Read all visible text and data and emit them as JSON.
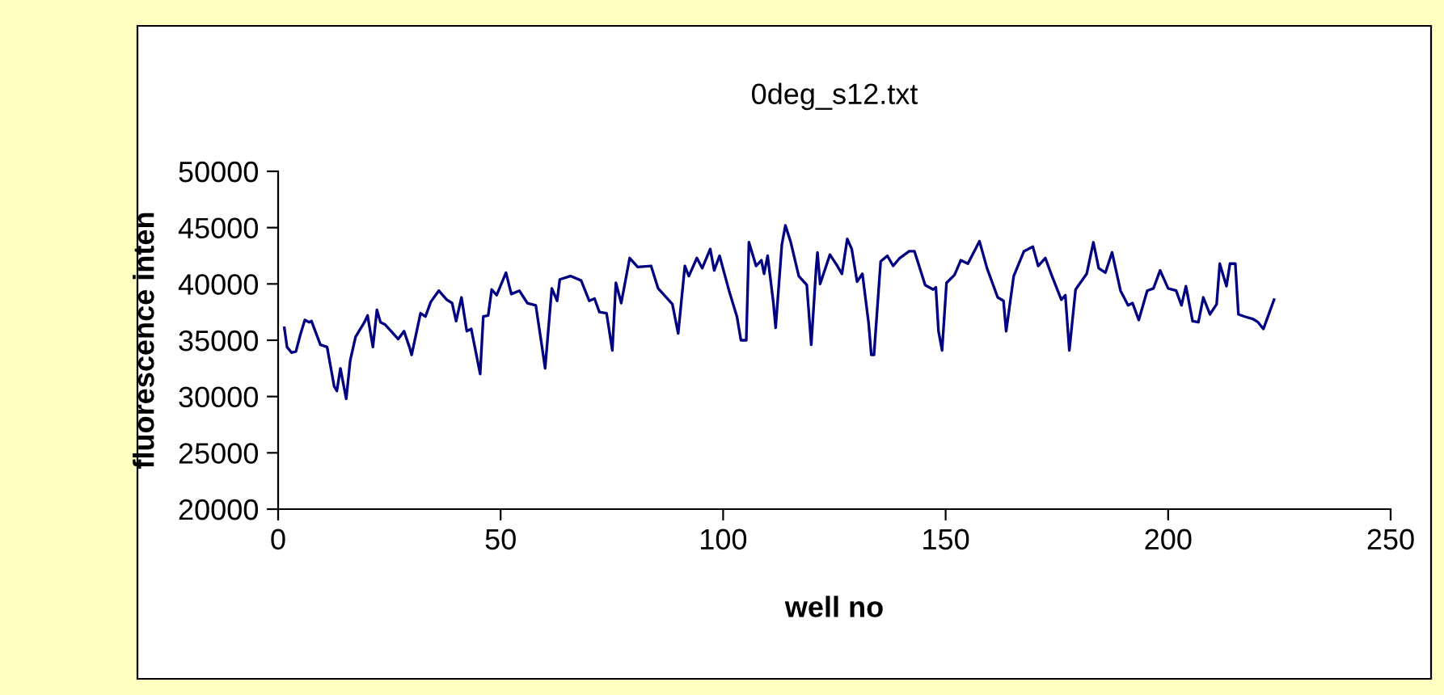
{
  "chart_data": {
    "type": "line",
    "title": "0deg_s12.txt",
    "xlabel": "well no",
    "ylabel": "fluorescence inten",
    "xlim": [
      0,
      250
    ],
    "xticks": [
      0,
      50,
      100,
      150,
      200,
      250
    ],
    "ylim": [
      20000,
      50000
    ],
    "yticks": [
      20000,
      25000,
      30000,
      35000,
      40000,
      45000,
      50000
    ],
    "grid": false,
    "legend": false,
    "marker": "none",
    "line_style": "solid",
    "series": [
      {
        "color": "#000080",
        "x": [
          1.4,
          2,
          3,
          4,
          5,
          6,
          7,
          7.5,
          9.5,
          11,
          12.6,
          13.2,
          14,
          15.3,
          16.2,
          17.4,
          19.4,
          20.1,
          21.3,
          22.2,
          23,
          24,
          27,
          28.3,
          29.5,
          30,
          32,
          33.1,
          34.3,
          36.1,
          37.9,
          39.1,
          40,
          41.2,
          42.4,
          43.4,
          45.4,
          46.1,
          47.2,
          48,
          49.1,
          51.2,
          52.4,
          54.2,
          56,
          57.9,
          59.3,
          60,
          61.5,
          62.7,
          63.3,
          65.7,
          68.1,
          69.9,
          71.1,
          72.2,
          73.8,
          75.1,
          75.9,
          77.1,
          79,
          80.8,
          83.8,
          85.4,
          88.6,
          89.9,
          91.4,
          92.3,
          94.1,
          95.3,
          97.1,
          98,
          99.2,
          101.4,
          103.1,
          104,
          105.2,
          105.8,
          107.4,
          108.6,
          109.2,
          110,
          111.3,
          111.8,
          113.2,
          114,
          115.2,
          117,
          118.8,
          119.8,
          120.9,
          121.2,
          121.8,
          124,
          125.5,
          126.7,
          127.9,
          128.9,
          130.1,
          131.3,
          132.7,
          133.3,
          133.9,
          135.4,
          136.9,
          138.2,
          139.7,
          141.8,
          143,
          145.4,
          147.2,
          147.8,
          148.4,
          149.2,
          150.2,
          152,
          153.4,
          155,
          157.6,
          159.3,
          161.7,
          163,
          163.6,
          165.3,
          167.6,
          169.6,
          170.8,
          172.4,
          173.9,
          176,
          176.9,
          177.8,
          179.2,
          181.7,
          183.2,
          184.4,
          185.9,
          187.4,
          189.3,
          191,
          192,
          193.4,
          195.3,
          196.7,
          198.2,
          200,
          201.8,
          203,
          204,
          205.5,
          206.8,
          207.9,
          209.4,
          210.9,
          211.6,
          213.1,
          213.9,
          215.1,
          215.8,
          217.2,
          219,
          220.2,
          221.4,
          223.8
        ],
        "values": [
          36100,
          34400,
          33900,
          34000,
          35500,
          36800,
          36600,
          36700,
          34600,
          34400,
          30900,
          30500,
          32500,
          29800,
          33200,
          35300,
          36600,
          37200,
          34400,
          37700,
          36600,
          36400,
          35100,
          35800,
          34400,
          33700,
          37400,
          37100,
          38400,
          39400,
          38600,
          38300,
          36700,
          38800,
          35800,
          36000,
          32000,
          37100,
          37200,
          39500,
          39000,
          41000,
          39100,
          39400,
          38300,
          38100,
          34400,
          32500,
          39600,
          38500,
          40400,
          40700,
          40300,
          38500,
          38700,
          37500,
          37400,
          34100,
          40100,
          38300,
          42300,
          41500,
          41600,
          39600,
          38200,
          35600,
          41600,
          40700,
          42300,
          41400,
          43100,
          41200,
          42500,
          39300,
          37100,
          35000,
          35000,
          43700,
          41600,
          42100,
          40900,
          42500,
          38300,
          36100,
          43500,
          45200,
          43700,
          40700,
          39900,
          34600,
          41400,
          42800,
          40000,
          42600,
          41700,
          40900,
          44000,
          43100,
          40200,
          40900,
          36500,
          33700,
          33700,
          42000,
          42500,
          41600,
          42300,
          42900,
          42900,
          39900,
          39500,
          39700,
          35800,
          34100,
          40100,
          40800,
          42100,
          41800,
          43800,
          41400,
          38800,
          38500,
          35800,
          40700,
          42900,
          43300,
          41600,
          42300,
          40700,
          38600,
          39000,
          34100,
          39500,
          40900,
          43700,
          41400,
          41000,
          42800,
          39400,
          38100,
          38300,
          36800,
          39400,
          39600,
          41200,
          39600,
          39400,
          38100,
          39800,
          36700,
          36600,
          38800,
          37300,
          38200,
          41800,
          39800,
          41800,
          41800,
          37300,
          37100,
          36900,
          36600,
          36000,
          38600
        ]
      }
    ]
  }
}
